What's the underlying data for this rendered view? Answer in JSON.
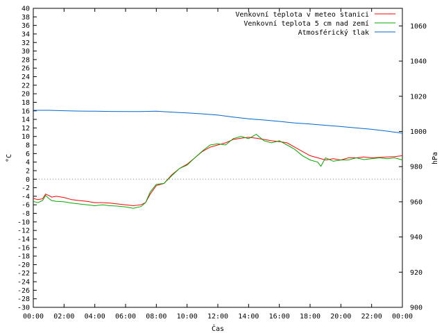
{
  "chart_data": {
    "type": "line",
    "xlabel": "Čas",
    "ylabel_left": "°C",
    "ylabel_right": "hPa",
    "x_ticks": [
      "00:00",
      "02:00",
      "04:00",
      "06:00",
      "08:00",
      "10:00",
      "12:00",
      "14:00",
      "16:00",
      "18:00",
      "20:00",
      "22:00",
      "00:00"
    ],
    "x_range_hours": [
      0,
      24
    ],
    "ylim_left": [
      -30,
      40
    ],
    "y_ticks_left_step": 2,
    "ylim_right": [
      900,
      1070
    ],
    "y_ticks_right": [
      900,
      920,
      940,
      960,
      980,
      1000,
      1020,
      1040,
      1060
    ],
    "legend_position": "top-right",
    "series": [
      {
        "name": "Venkovní teplota v meteo stanici",
        "color": "#ff0000",
        "axis": "left",
        "x": [
          0,
          0.3,
          0.6,
          0.8,
          1.0,
          1.2,
          1.5,
          2.0,
          2.5,
          3.0,
          3.5,
          4.0,
          4.5,
          5.0,
          5.5,
          6.0,
          6.5,
          7.0,
          7.3,
          7.6,
          8.0,
          8.5,
          9.0,
          9.5,
          10.0,
          10.5,
          11.0,
          11.5,
          12.0,
          12.5,
          13.0,
          13.5,
          14.0,
          14.5,
          15.0,
          15.5,
          16.0,
          16.5,
          17.0,
          17.5,
          18.0,
          18.5,
          19.0,
          19.5,
          20.0,
          20.5,
          21.0,
          21.5,
          22.0,
          22.5,
          23.0,
          23.5,
          24.0
        ],
        "y": [
          -4.5,
          -4.8,
          -4.6,
          -3.5,
          -3.8,
          -4.2,
          -4.0,
          -4.3,
          -4.8,
          -5.0,
          -5.2,
          -5.5,
          -5.5,
          -5.6,
          -5.8,
          -6.0,
          -6.2,
          -6.0,
          -5.5,
          -3.5,
          -1.5,
          -1.0,
          1.0,
          2.5,
          3.5,
          5.0,
          6.5,
          7.5,
          8.0,
          8.5,
          9.3,
          9.6,
          9.8,
          9.6,
          9.3,
          9.0,
          8.8,
          8.5,
          7.5,
          6.5,
          5.5,
          5.0,
          4.5,
          4.8,
          4.5,
          5.0,
          5.0,
          5.2,
          5.0,
          5.1,
          5.2,
          5.3,
          5.5
        ]
      },
      {
        "name": "Venkovní teplota 5 cm nad zemí",
        "color": "#00aa00",
        "axis": "left",
        "x": [
          0,
          0.3,
          0.6,
          0.8,
          1.0,
          1.2,
          1.5,
          2.0,
          2.5,
          3.0,
          3.5,
          4.0,
          4.5,
          5.0,
          5.5,
          6.0,
          6.5,
          7.0,
          7.3,
          7.6,
          8.0,
          8.5,
          9.0,
          9.5,
          10.0,
          10.5,
          11.0,
          11.5,
          12.0,
          12.5,
          13.0,
          13.5,
          14.0,
          14.5,
          15.0,
          15.5,
          16.0,
          16.5,
          17.0,
          17.5,
          18.0,
          18.5,
          18.7,
          19.0,
          19.5,
          20.0,
          20.5,
          21.0,
          21.5,
          22.0,
          22.5,
          23.0,
          23.5,
          24.0
        ],
        "y": [
          -5.2,
          -5.5,
          -5.0,
          -3.8,
          -4.5,
          -5.0,
          -5.2,
          -5.3,
          -5.6,
          -5.8,
          -6.0,
          -6.2,
          -6.0,
          -6.2,
          -6.3,
          -6.5,
          -6.8,
          -6.4,
          -5.5,
          -3.0,
          -1.2,
          -1.0,
          0.8,
          2.5,
          3.3,
          5.0,
          6.6,
          8.0,
          8.3,
          8.0,
          9.5,
          10.0,
          9.5,
          10.5,
          9.0,
          8.5,
          9.0,
          8.0,
          7.0,
          5.5,
          4.5,
          4.0,
          3.0,
          5.0,
          4.2,
          4.5,
          4.5,
          5.0,
          4.6,
          4.8,
          5.0,
          4.8,
          5.0,
          4.5
        ]
      },
      {
        "name": "Atmosférický tlak",
        "color": "#0066cc",
        "axis": "right",
        "x": [
          0,
          1,
          2,
          3,
          4,
          5,
          6,
          7,
          8,
          9,
          10,
          11,
          12,
          13,
          14,
          15,
          16,
          17,
          18,
          19,
          20,
          21,
          22,
          23,
          24
        ],
        "y": [
          1012.0,
          1012.0,
          1011.8,
          1011.6,
          1011.5,
          1011.4,
          1011.3,
          1011.3,
          1011.5,
          1011.0,
          1010.5,
          1010.0,
          1009.3,
          1008.2,
          1007.2,
          1006.5,
          1005.7,
          1004.8,
          1004.2,
          1003.5,
          1002.8,
          1002.0,
          1001.2,
          1000.2,
          999.0
        ]
      }
    ]
  }
}
